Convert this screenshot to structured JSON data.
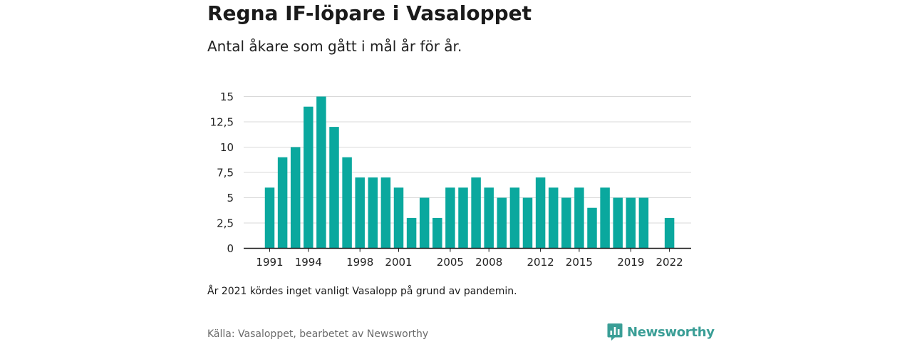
{
  "header": {
    "title": "Regna IF-löpare i Vasaloppet",
    "subtitle": "Antal åkare som gått i mål år för år."
  },
  "footer": {
    "note": "År 2021 kördes inget vanligt Vasalopp på grund av pandemin.",
    "source": "Källa: Vasaloppet, bearbetet av Newsworthy",
    "logo_text": "Newsworthy"
  },
  "colors": {
    "bar": "#0aa89e",
    "grid": "#d9d9d9",
    "axis": "#1a1a1a",
    "logo": "#3a9e96"
  },
  "icons": {
    "logo_mark": "newsworthy-chart-bubble-icon"
  },
  "chart_data": {
    "type": "bar",
    "title": "Regna IF-löpare i Vasaloppet",
    "subtitle": "Antal åkare som gått i mål år för år.",
    "xlabel": "",
    "ylabel": "",
    "ylim": [
      0,
      15
    ],
    "yticks": [
      0,
      2.5,
      5,
      7.5,
      10,
      12.5,
      15
    ],
    "ytick_labels": [
      "0",
      "2,5",
      "5",
      "7,5",
      "10",
      "12,5",
      "15"
    ],
    "xtick_labels": [
      "1991",
      "1994",
      "1998",
      "2001",
      "2005",
      "2008",
      "2012",
      "2015",
      "2019",
      "2022"
    ],
    "grid": true,
    "categories": [
      1991,
      1992,
      1993,
      1994,
      1995,
      1996,
      1997,
      1998,
      1999,
      2000,
      2001,
      2002,
      2003,
      2004,
      2005,
      2006,
      2007,
      2008,
      2009,
      2010,
      2011,
      2012,
      2013,
      2014,
      2015,
      2016,
      2017,
      2018,
      2019,
      2020,
      2021,
      2022
    ],
    "values": [
      6,
      9,
      10,
      14,
      15,
      12,
      9,
      7,
      7,
      7,
      6,
      3,
      5,
      3,
      6,
      6,
      7,
      6,
      5,
      6,
      5,
      7,
      6,
      5,
      6,
      4,
      6,
      5,
      5,
      5,
      null,
      3
    ]
  }
}
